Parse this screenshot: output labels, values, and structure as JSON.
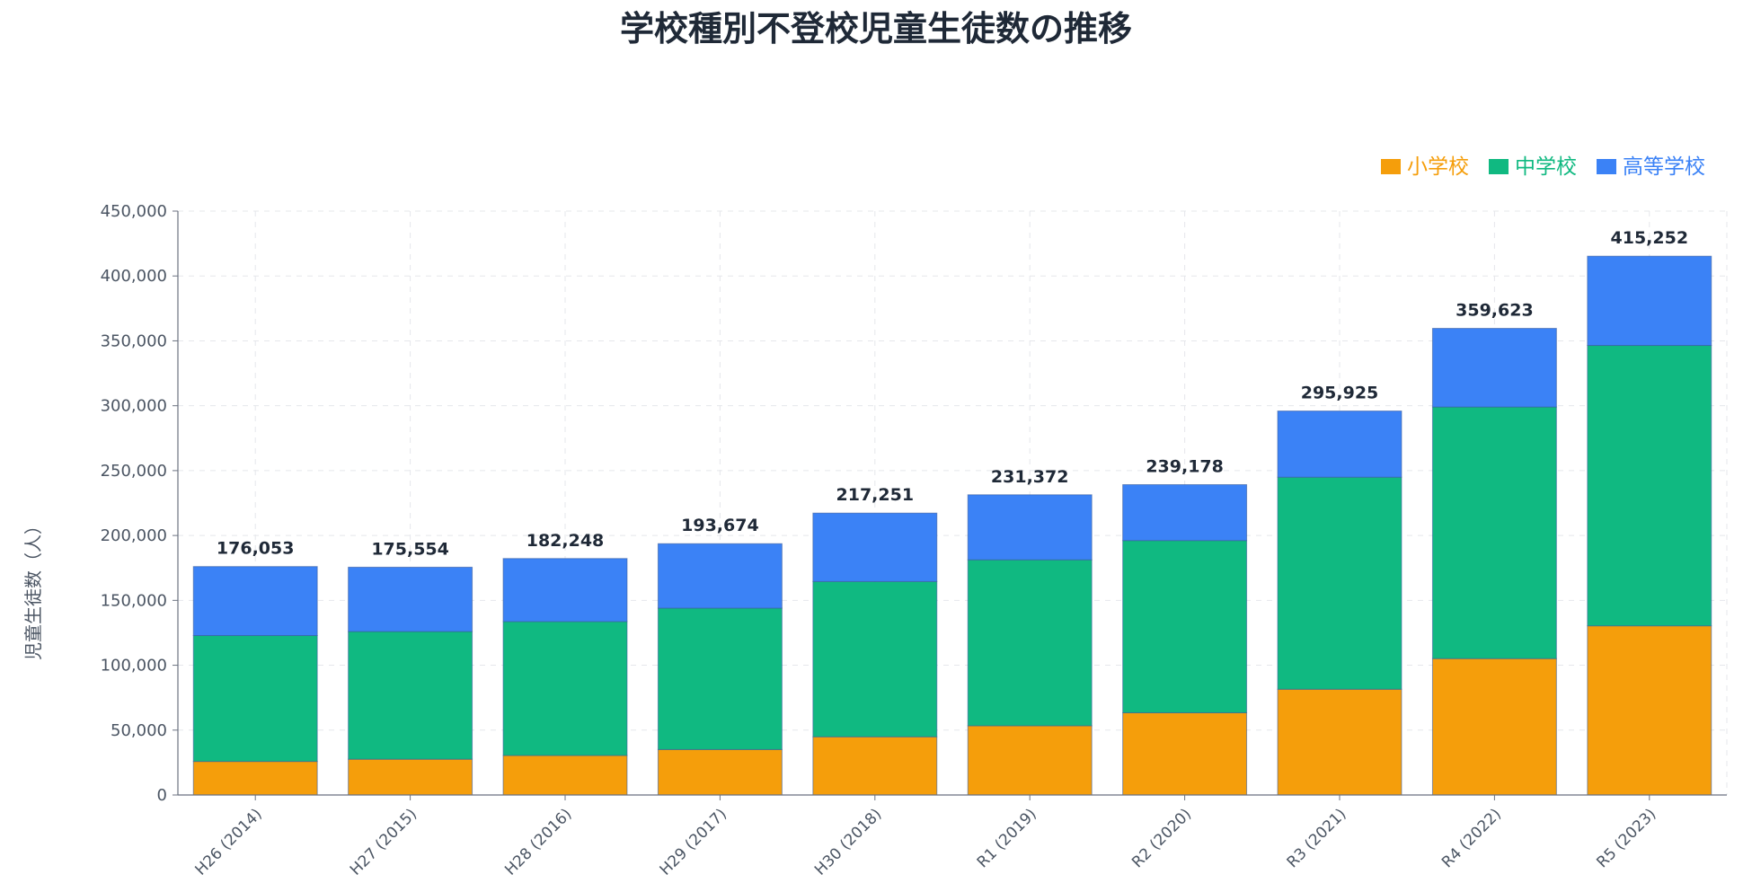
{
  "chart_data": {
    "type": "bar",
    "stacked": true,
    "title": "学校種別不登校児童生徒数の推移",
    "xlabel": "",
    "ylabel": "児童生徒数（人）",
    "ylim": [
      0,
      450000
    ],
    "yticks": [
      0,
      50000,
      100000,
      150000,
      200000,
      250000,
      300000,
      350000,
      400000,
      450000
    ],
    "ytick_labels": [
      "0",
      "50,000",
      "100,000",
      "150,000",
      "200,000",
      "250,000",
      "300,000",
      "350,000",
      "400,000",
      "450,000"
    ],
    "grid": true,
    "legend_position": "top-right",
    "categories": [
      "H26 (2014)",
      "H27 (2015)",
      "H28 (2016)",
      "H29 (2017)",
      "H30 (2018)",
      "R1 (2019)",
      "R2 (2020)",
      "R3 (2021)",
      "R4 (2022)",
      "R5 (2023)"
    ],
    "series": [
      {
        "name": "小学校",
        "color": "#f59e0b",
        "values": [
          25864,
          27583,
          30448,
          35032,
          44841,
          53350,
          63350,
          81498,
          105112,
          130370
        ]
      },
      {
        "name": "中学校",
        "color": "#10b981",
        "values": [
          97033,
          98408,
          103235,
          108999,
          119687,
          127922,
          132777,
          163442,
          193936,
          216112
        ]
      },
      {
        "name": "高等学校",
        "color": "#3b82f6",
        "values": [
          53156,
          49563,
          48565,
          49643,
          52723,
          50100,
          43051,
          50985,
          60575,
          68770
        ]
      }
    ],
    "totals": [
      176053,
      175554,
      182248,
      193674,
      217251,
      231372,
      239178,
      295925,
      359623,
      415252
    ],
    "total_labels": [
      "176,053",
      "175,554",
      "182,248",
      "193,674",
      "217,251",
      "231,372",
      "239,178",
      "295,925",
      "359,623",
      "415,252"
    ]
  }
}
